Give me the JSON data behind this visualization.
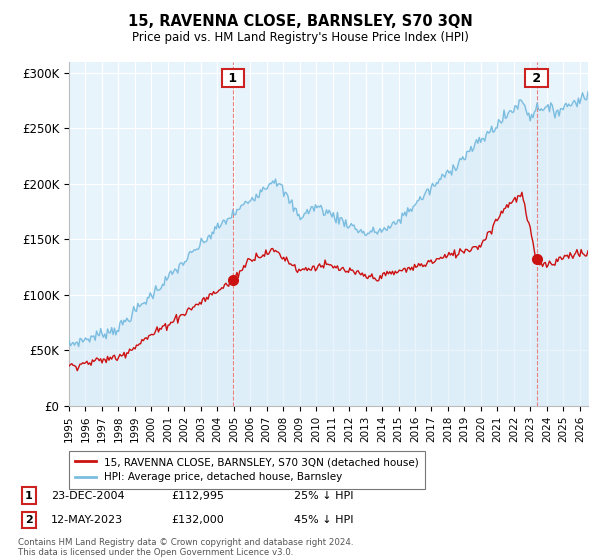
{
  "title": "15, RAVENNA CLOSE, BARNSLEY, S70 3QN",
  "subtitle": "Price paid vs. HM Land Registry's House Price Index (HPI)",
  "ylabel_ticks": [
    "£0",
    "£50K",
    "£100K",
    "£150K",
    "£200K",
    "£250K",
    "£300K"
  ],
  "ytick_values": [
    0,
    50000,
    100000,
    150000,
    200000,
    250000,
    300000
  ],
  "ylim": [
    0,
    310000
  ],
  "xlim_start": 1995.0,
  "xlim_end": 2026.5,
  "xticks": [
    1995,
    1996,
    1997,
    1998,
    1999,
    2000,
    2001,
    2002,
    2003,
    2004,
    2005,
    2006,
    2007,
    2008,
    2009,
    2010,
    2011,
    2012,
    2013,
    2014,
    2015,
    2016,
    2017,
    2018,
    2019,
    2020,
    2021,
    2022,
    2023,
    2024,
    2025,
    2026
  ],
  "hpi_color": "#7bbde0",
  "hpi_fill_color": "#d6eaf8",
  "price_color": "#cc1111",
  "vline_color": "#e88080",
  "legend_label1": "15, RAVENNA CLOSE, BARNSLEY, S70 3QN (detached house)",
  "legend_label2": "HPI: Average price, detached house, Barnsley",
  "annotation1_label": "1",
  "annotation1_date": "23-DEC-2004",
  "annotation1_price": "£112,995",
  "annotation1_pct": "25% ↓ HPI",
  "annotation2_label": "2",
  "annotation2_date": "12-MAY-2023",
  "annotation2_price": "£132,000",
  "annotation2_pct": "45% ↓ HPI",
  "footnote": "Contains HM Land Registry data © Crown copyright and database right 2024.\nThis data is licensed under the Open Government Licence v3.0.",
  "background_color": "#ffffff",
  "chart_bg_color": "#e8f4fc",
  "grid_color": "#ffffff",
  "sale1_x": 2004.958,
  "sale1_y": 112995,
  "sale2_x": 2023.375,
  "sale2_y": 132000
}
